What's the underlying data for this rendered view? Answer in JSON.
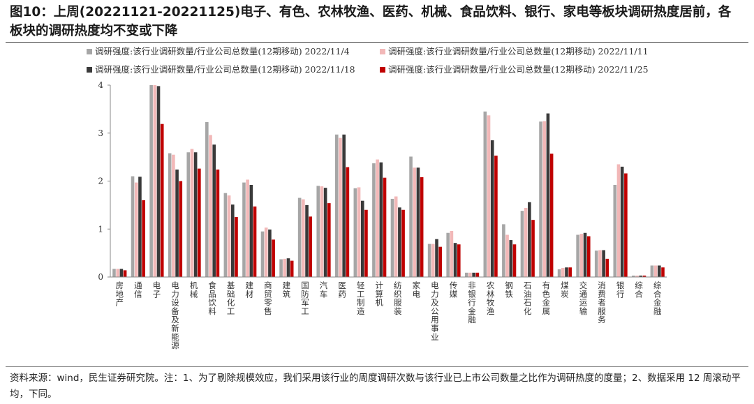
{
  "title": "图10：上周(20221121-20221125)电子、有色、农林牧渔、医药、机械、食品饮料、银行、家电等板块调研热度居前，各板块的调研热度均不变或下降",
  "source": "资料来源：wind，民生证券研究院。注：1、为了剔除规模效应，我们采用该行业的周度调研次数与该行业已上市公司数量之比作为调研热度的度量；2、数据采用 12 周滚动平均，下同。",
  "chart_data": {
    "type": "bar",
    "ylim": [
      0,
      4
    ],
    "yticks": [
      0,
      1,
      2,
      3,
      4
    ],
    "legend_placement": "top",
    "categories": [
      "房地产",
      "通信",
      "电子",
      "电力设备及新能源",
      "机械",
      "食品饮料",
      "基础化工",
      "建材",
      "商贸零售",
      "建筑",
      "国防军工",
      "汽车",
      "医药",
      "轻工制造",
      "计算机",
      "纺织服装",
      "家电",
      "电力及公用事业",
      "传媒",
      "非银行金融",
      "农林牧渔",
      "钢铁",
      "石油石化",
      "有色金属",
      "煤炭",
      "交通运输",
      "消费者服务",
      "银行",
      "综合",
      "综合金融"
    ],
    "series": [
      {
        "name": "调研强度:该行业调研数量/行业公司总数量(12期移动) 2022/11/4",
        "color": "#a6a6a6",
        "values": [
          0.17,
          2.1,
          4.0,
          2.58,
          2.6,
          3.23,
          1.75,
          1.97,
          0.95,
          0.37,
          1.65,
          1.9,
          2.97,
          1.85,
          2.37,
          1.63,
          2.51,
          0.69,
          0.92,
          0.09,
          3.45,
          1.1,
          1.38,
          3.24,
          0.16,
          0.88,
          0.55,
          1.92,
          0.03,
          0.24
        ]
      },
      {
        "name": "调研强度:该行业调研数量/行业公司总数量(12期移动) 2022/11/11",
        "color": "#f2b8b8",
        "values": [
          0.17,
          1.97,
          4.0,
          2.55,
          2.67,
          2.96,
          1.7,
          2.03,
          1.03,
          0.38,
          1.62,
          1.89,
          2.9,
          1.87,
          2.45,
          1.68,
          2.28,
          0.69,
          0.96,
          0.09,
          3.37,
          0.88,
          1.44,
          3.25,
          0.19,
          0.9,
          0.56,
          2.35,
          0.03,
          0.24
        ]
      },
      {
        "name": "调研强度:该行业调研数量/行业公司总数量(12期移动) 2022/11/18",
        "color": "#3a3a3a",
        "values": [
          0.17,
          2.09,
          3.98,
          2.24,
          2.6,
          2.76,
          1.51,
          1.92,
          0.99,
          0.39,
          1.5,
          1.86,
          2.97,
          1.59,
          2.39,
          1.45,
          2.28,
          0.79,
          0.71,
          0.09,
          2.85,
          0.77,
          1.56,
          3.41,
          0.2,
          0.92,
          0.56,
          2.3,
          0.03,
          0.24
        ]
      },
      {
        "name": "调研强度:该行业调研数量/行业公司总数量(12期移动) 2022/11/25",
        "color": "#c00000",
        "values": [
          0.14,
          1.6,
          3.19,
          2.0,
          2.26,
          2.24,
          1.25,
          1.47,
          0.78,
          0.34,
          1.26,
          1.54,
          2.29,
          1.4,
          2.07,
          1.4,
          2.08,
          0.63,
          0.68,
          0.09,
          2.53,
          0.68,
          1.19,
          2.57,
          0.2,
          0.85,
          0.38,
          2.16,
          0.03,
          0.2
        ]
      }
    ]
  }
}
